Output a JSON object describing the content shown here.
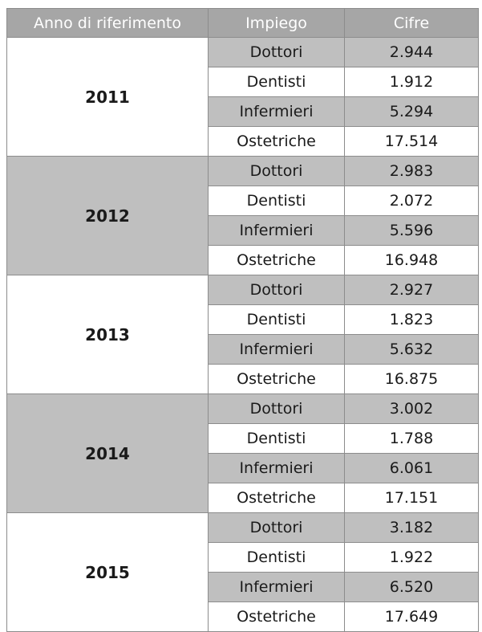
{
  "table": {
    "headers": [
      "Anno di riferimento",
      "Impiego",
      "Cifre"
    ],
    "colors": {
      "header_bg": "#a6a6a6",
      "shade_bg": "#bfbfbf",
      "border": "#8c8c8c"
    },
    "groups": [
      {
        "year": "2011",
        "rows": [
          {
            "job": "Dottori",
            "value": "2.944"
          },
          {
            "job": "Dentisti",
            "value": "1.912"
          },
          {
            "job": "Infermieri",
            "value": "5.294"
          },
          {
            "job": "Ostetriche",
            "value": "17.514"
          }
        ]
      },
      {
        "year": "2012",
        "rows": [
          {
            "job": "Dottori",
            "value": "2.983"
          },
          {
            "job": "Dentisti",
            "value": "2.072"
          },
          {
            "job": "Infermieri",
            "value": "5.596"
          },
          {
            "job": "Ostetriche",
            "value": "16.948"
          }
        ]
      },
      {
        "year": "2013",
        "rows": [
          {
            "job": "Dottori",
            "value": "2.927"
          },
          {
            "job": "Dentisti",
            "value": "1.823"
          },
          {
            "job": "Infermieri",
            "value": "5.632"
          },
          {
            "job": "Ostetriche",
            "value": "16.875"
          }
        ]
      },
      {
        "year": "2014",
        "rows": [
          {
            "job": "Dottori",
            "value": "3.002"
          },
          {
            "job": "Dentisti",
            "value": "1.788"
          },
          {
            "job": "Infermieri",
            "value": "6.061"
          },
          {
            "job": "Ostetriche",
            "value": "17.151"
          }
        ]
      },
      {
        "year": "2015",
        "rows": [
          {
            "job": "Dottori",
            "value": "3.182"
          },
          {
            "job": "Dentisti",
            "value": "1.922"
          },
          {
            "job": "Infermieri",
            "value": "6.520"
          },
          {
            "job": "Ostetriche",
            "value": "17.649"
          }
        ]
      }
    ]
  }
}
